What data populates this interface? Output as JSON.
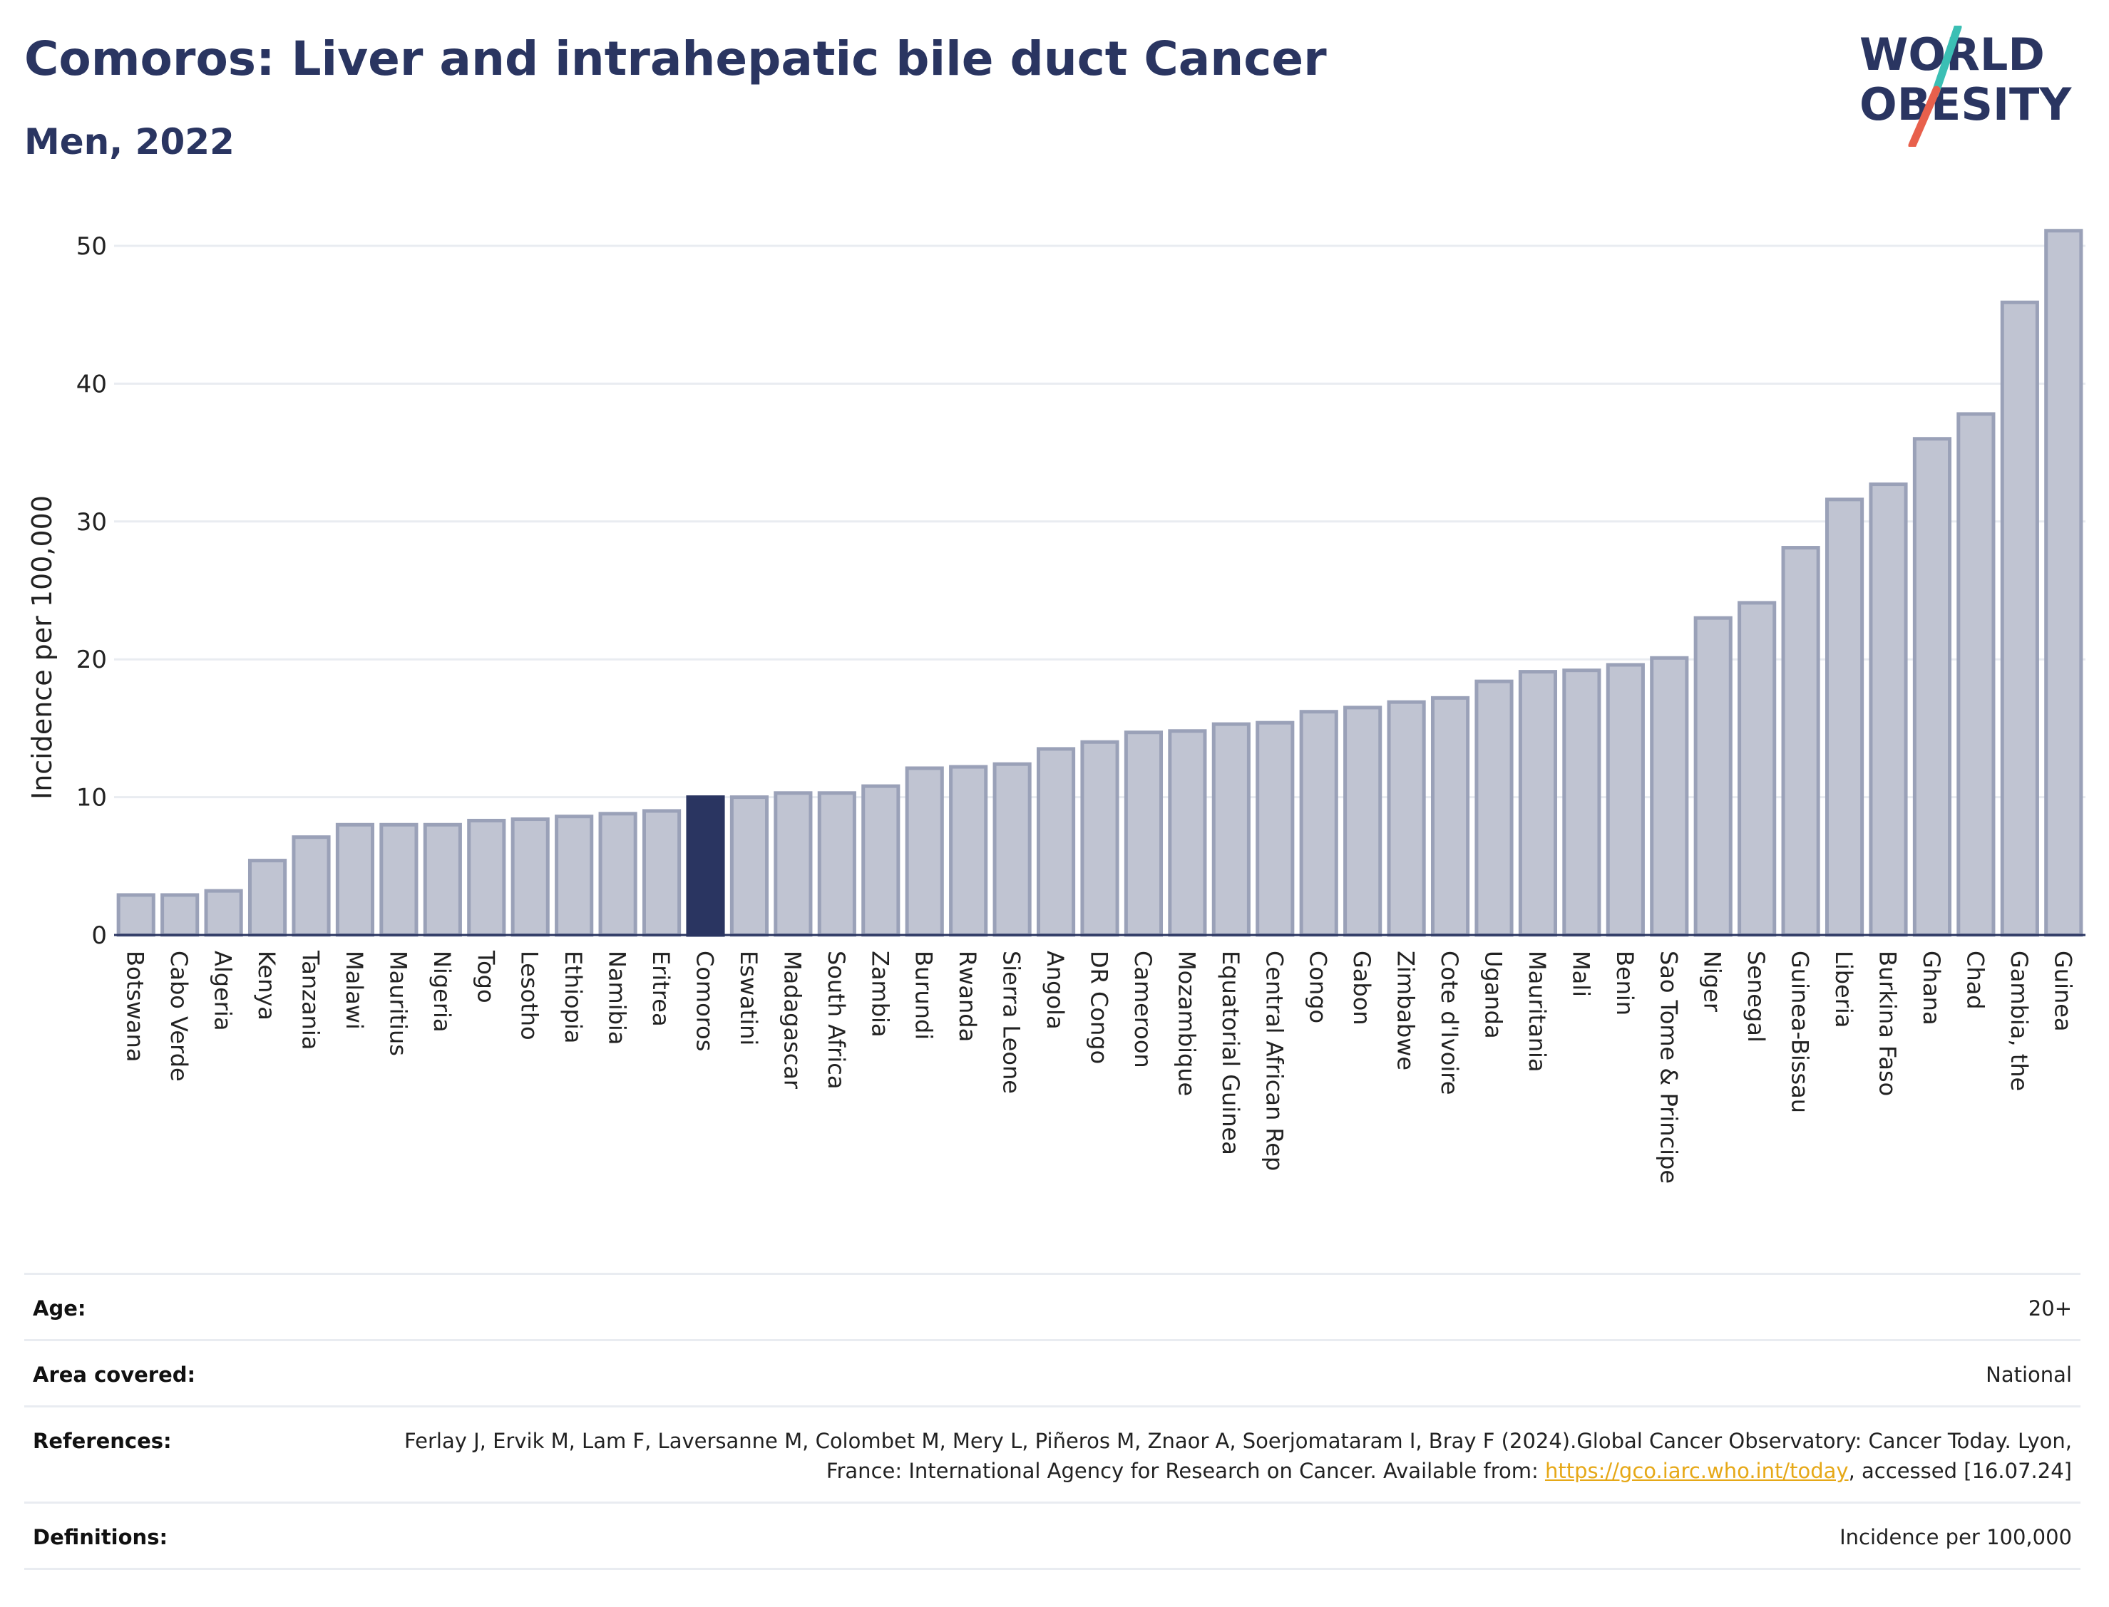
{
  "header": {
    "title": "Comoros: Liver and intrahepatic bile duct Cancer",
    "subtitle": "Men, 2022"
  },
  "logo": {
    "line1": "WORLD",
    "line2": "OBESITY",
    "accent_teal": "#3bbfb4",
    "accent_red": "#e8604c",
    "text_color": "#2a3561"
  },
  "chart_data": {
    "type": "bar",
    "ylabel": "Incidence per 100,000",
    "ylim": [
      0,
      53
    ],
    "yticks": [
      0,
      10,
      20,
      30,
      40,
      50
    ],
    "grid": true,
    "highlight": "Comoros",
    "colors": {
      "bar": "#c0c4d2",
      "bar_edge": "#9aa1b8",
      "highlight": "#2a3561"
    },
    "categories": [
      "Botswana",
      "Cabo Verde",
      "Algeria",
      "Kenya",
      "Tanzania",
      "Malawi",
      "Mauritius",
      "Nigeria",
      "Togo",
      "Lesotho",
      "Ethiopia",
      "Namibia",
      "Eritrea",
      "Comoros",
      "Eswatini",
      "Madagascar",
      "South Africa",
      "Zambia",
      "Burundi",
      "Rwanda",
      "Sierra Leone",
      "Angola",
      "DR Congo",
      "Cameroon",
      "Mozambique",
      "Equatorial Guinea",
      "Central African Rep",
      "Congo",
      "Gabon",
      "Zimbabwe",
      "Cote d'Ivoire",
      "Uganda",
      "Mauritania",
      "Mali",
      "Benin",
      "Sao Tome & Principe",
      "Niger",
      "Senegal",
      "Guinea-Bissau",
      "Liberia",
      "Burkina Faso",
      "Ghana",
      "Chad",
      "Gambia, the",
      "Guinea"
    ],
    "values": [
      2.9,
      2.9,
      3.2,
      5.4,
      7.1,
      8.0,
      8.0,
      8.0,
      8.3,
      8.4,
      8.6,
      8.8,
      9.0,
      10.0,
      10.0,
      10.3,
      10.3,
      10.8,
      12.1,
      12.2,
      12.4,
      13.5,
      14.0,
      14.7,
      14.8,
      15.3,
      15.4,
      16.2,
      16.5,
      16.9,
      17.2,
      18.4,
      19.1,
      19.2,
      19.6,
      20.1,
      23.0,
      24.1,
      28.1,
      31.6,
      32.7,
      36.0,
      37.8,
      45.9,
      51.1
    ]
  },
  "info": {
    "age": {
      "label": "Age:",
      "value": "20+"
    },
    "area": {
      "label": "Area covered:",
      "value": "National"
    },
    "references": {
      "label": "References:",
      "text_before": "Ferlay J, Ervik M, Lam F, Laversanne M, Colombet M, Mery L, Piñeros M, Znaor A, Soerjomataram I, Bray F (2024).Global Cancer Observatory: Cancer Today. Lyon, France: International Agency for Research on Cancer. Available from: ",
      "link": "https://gco.iarc.who.int/today",
      "text_after": ", accessed [16.07.24]"
    },
    "definitions": {
      "label": "Definitions:",
      "value": "Incidence per 100,000"
    }
  }
}
